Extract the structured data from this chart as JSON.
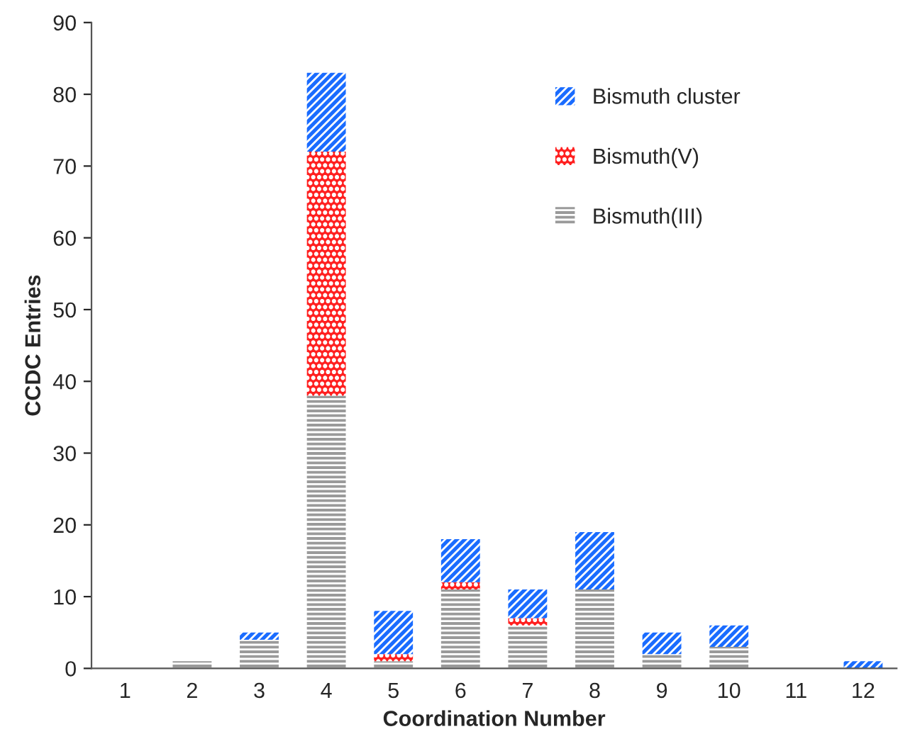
{
  "chart_data": {
    "type": "bar",
    "stacked": true,
    "xlabel": "Coordination Number",
    "ylabel": "CCDC Entries",
    "categories": [
      "1",
      "2",
      "3",
      "4",
      "5",
      "6",
      "7",
      "8",
      "9",
      "10",
      "11",
      "12"
    ],
    "series": [
      {
        "name": "Bismuth(III)",
        "color": "#9a9a9a",
        "values": [
          0,
          1,
          4,
          38,
          1,
          11,
          6,
          11,
          2,
          3,
          0,
          0
        ]
      },
      {
        "name": "Bismuth(V)",
        "color": "#ff2020",
        "values": [
          0,
          0,
          0,
          34,
          1,
          1,
          1,
          0,
          0,
          0,
          0,
          0
        ]
      },
      {
        "name": "Bismuth cluster",
        "color": "#1a6cff",
        "values": [
          0,
          0,
          1,
          11,
          6,
          6,
          4,
          8,
          3,
          3,
          0,
          1
        ]
      }
    ],
    "ylim": [
      0,
      90
    ],
    "yticks": [
      0,
      10,
      20,
      30,
      40,
      50,
      60,
      70,
      80,
      90
    ],
    "grid": false,
    "legend": "top right"
  }
}
